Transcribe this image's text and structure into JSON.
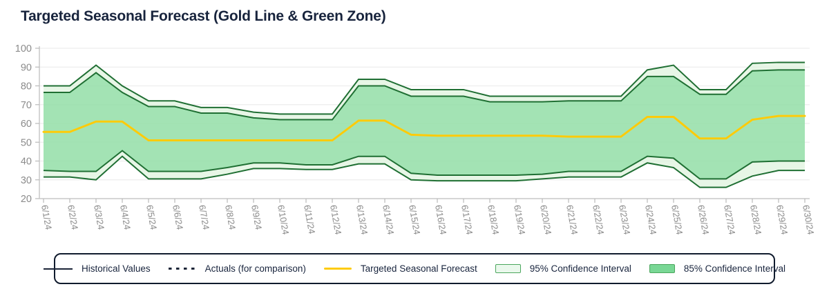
{
  "title": "Targeted Seasonal Forecast (Gold Line & Green Zone)",
  "colors": {
    "title_text": "#18243d",
    "axis_text": "#8b8b8b",
    "grid_line": "#ededed",
    "axis_line": "#c9c9c9",
    "tick_mark": "#b9b9b9",
    "gold": "#fecb09",
    "band_edge": "#1f6f33",
    "band95_fill": "#def2dd",
    "band85_fill": "#79d795",
    "dark_line": "#1b2437",
    "legend_border": "#101b2d",
    "legend_swatch_border": "#4aa65c",
    "legend_box95_fill": "#eaf8ec"
  },
  "y_axis": {
    "min": 20,
    "max": 100,
    "ticks": [
      100,
      90,
      80,
      70,
      60,
      50,
      40,
      30,
      20
    ]
  },
  "chart_data": {
    "type": "line",
    "title": "Targeted Seasonal Forecast (Gold Line & Green Zone)",
    "x": [
      "6/1/24",
      "6/2/24",
      "6/3/24",
      "6/4/24",
      "6/5/24",
      "6/6/24",
      "6/7/24",
      "6/8/24",
      "6/9/24",
      "6/10/24",
      "6/11/24",
      "6/12/24",
      "6/13/24",
      "6/14/24",
      "6/15/24",
      "6/16/24",
      "6/17/24",
      "6/18/24",
      "6/19/24",
      "6/20/24",
      "6/21/24",
      "6/22/24",
      "6/23/24",
      "6/24/24",
      "6/25/24",
      "6/26/24",
      "6/27/24",
      "6/28/24",
      "6/29/24",
      "6/30/24"
    ],
    "ylim": [
      20,
      100
    ],
    "grid": "horizontal",
    "legend_position": "bottom",
    "series": [
      {
        "name": "Historical Values",
        "type": "line",
        "style": "solid",
        "color": "#1b2437",
        "values": []
      },
      {
        "name": "Actuals (for comparison)",
        "type": "line",
        "style": "dashed",
        "color": "#1b2437",
        "values": []
      },
      {
        "name": "Targeted Seasonal Forecast",
        "type": "line",
        "style": "solid",
        "color": "#fecb09",
        "values": [
          55.5,
          55.5,
          61,
          61,
          51,
          51,
          51,
          51,
          51,
          51,
          51,
          51,
          61.5,
          61.5,
          54,
          53.5,
          53.5,
          53.5,
          53.5,
          53.5,
          53,
          53,
          53,
          63.5,
          63.5,
          52,
          52,
          62,
          64,
          64
        ]
      },
      {
        "name": "95% Confidence Interval",
        "type": "band",
        "fill": "#def2dd",
        "fill_opacity": 0.72,
        "edge": "#1f6f33",
        "upper": [
          80,
          80,
          91,
          80,
          72,
          72,
          68.5,
          68.5,
          66,
          65,
          65,
          65,
          83.5,
          83.5,
          78,
          78,
          78,
          74.5,
          74.5,
          74.5,
          74.5,
          74.5,
          74.5,
          88.5,
          91,
          78,
          78,
          92,
          92.5,
          92.5
        ],
        "lower": [
          31.5,
          31.5,
          30,
          42.5,
          30.5,
          30.5,
          30.5,
          33,
          36,
          36,
          35.5,
          35.5,
          38.5,
          38.5,
          30,
          29.5,
          29.5,
          29.5,
          29.5,
          30.5,
          31.5,
          31.5,
          31.5,
          39,
          36.5,
          26,
          26,
          32,
          35,
          35
        ]
      },
      {
        "name": "85% Confidence Interval",
        "type": "band",
        "fill": "#79d795",
        "fill_opacity": 0.62,
        "edge": "#1f6f33",
        "upper": [
          76.5,
          76.5,
          87,
          76.5,
          69,
          69,
          65.5,
          65.5,
          63,
          62,
          62,
          62,
          80,
          80,
          74.5,
          74.5,
          74.5,
          71.5,
          71.5,
          71.5,
          72,
          72,
          72,
          85,
          85,
          75.5,
          75.5,
          88,
          88.5,
          88.5
        ],
        "lower": [
          35,
          34.5,
          34.5,
          45.5,
          34.5,
          34.5,
          34.5,
          36.5,
          39,
          39,
          38,
          38,
          42.5,
          42.5,
          33.5,
          32.5,
          32.5,
          32.5,
          32.5,
          33,
          34.5,
          34.5,
          34.5,
          42.5,
          41.5,
          30.5,
          30.5,
          39.5,
          40,
          40
        ]
      }
    ]
  },
  "legend": {
    "items": [
      {
        "id": "historical-values",
        "label": "Historical Values",
        "swatch": "solid-line",
        "color": "#1b2437"
      },
      {
        "id": "actuals",
        "label": "Actuals (for comparison)",
        "swatch": "dashed-line",
        "color": "#1b2437"
      },
      {
        "id": "targeted-seasonal-forecast",
        "label": "Targeted Seasonal Forecast",
        "swatch": "gold-line",
        "color": "#fecb09"
      },
      {
        "id": "ci-95",
        "label": "95% Confidence Interval",
        "swatch": "box",
        "fill": "#eaf8ec",
        "border": "#4aa65c"
      },
      {
        "id": "ci-85",
        "label": "85% Confidence Interval",
        "swatch": "box",
        "fill": "#79d795",
        "border": "#4aa65c"
      }
    ]
  }
}
